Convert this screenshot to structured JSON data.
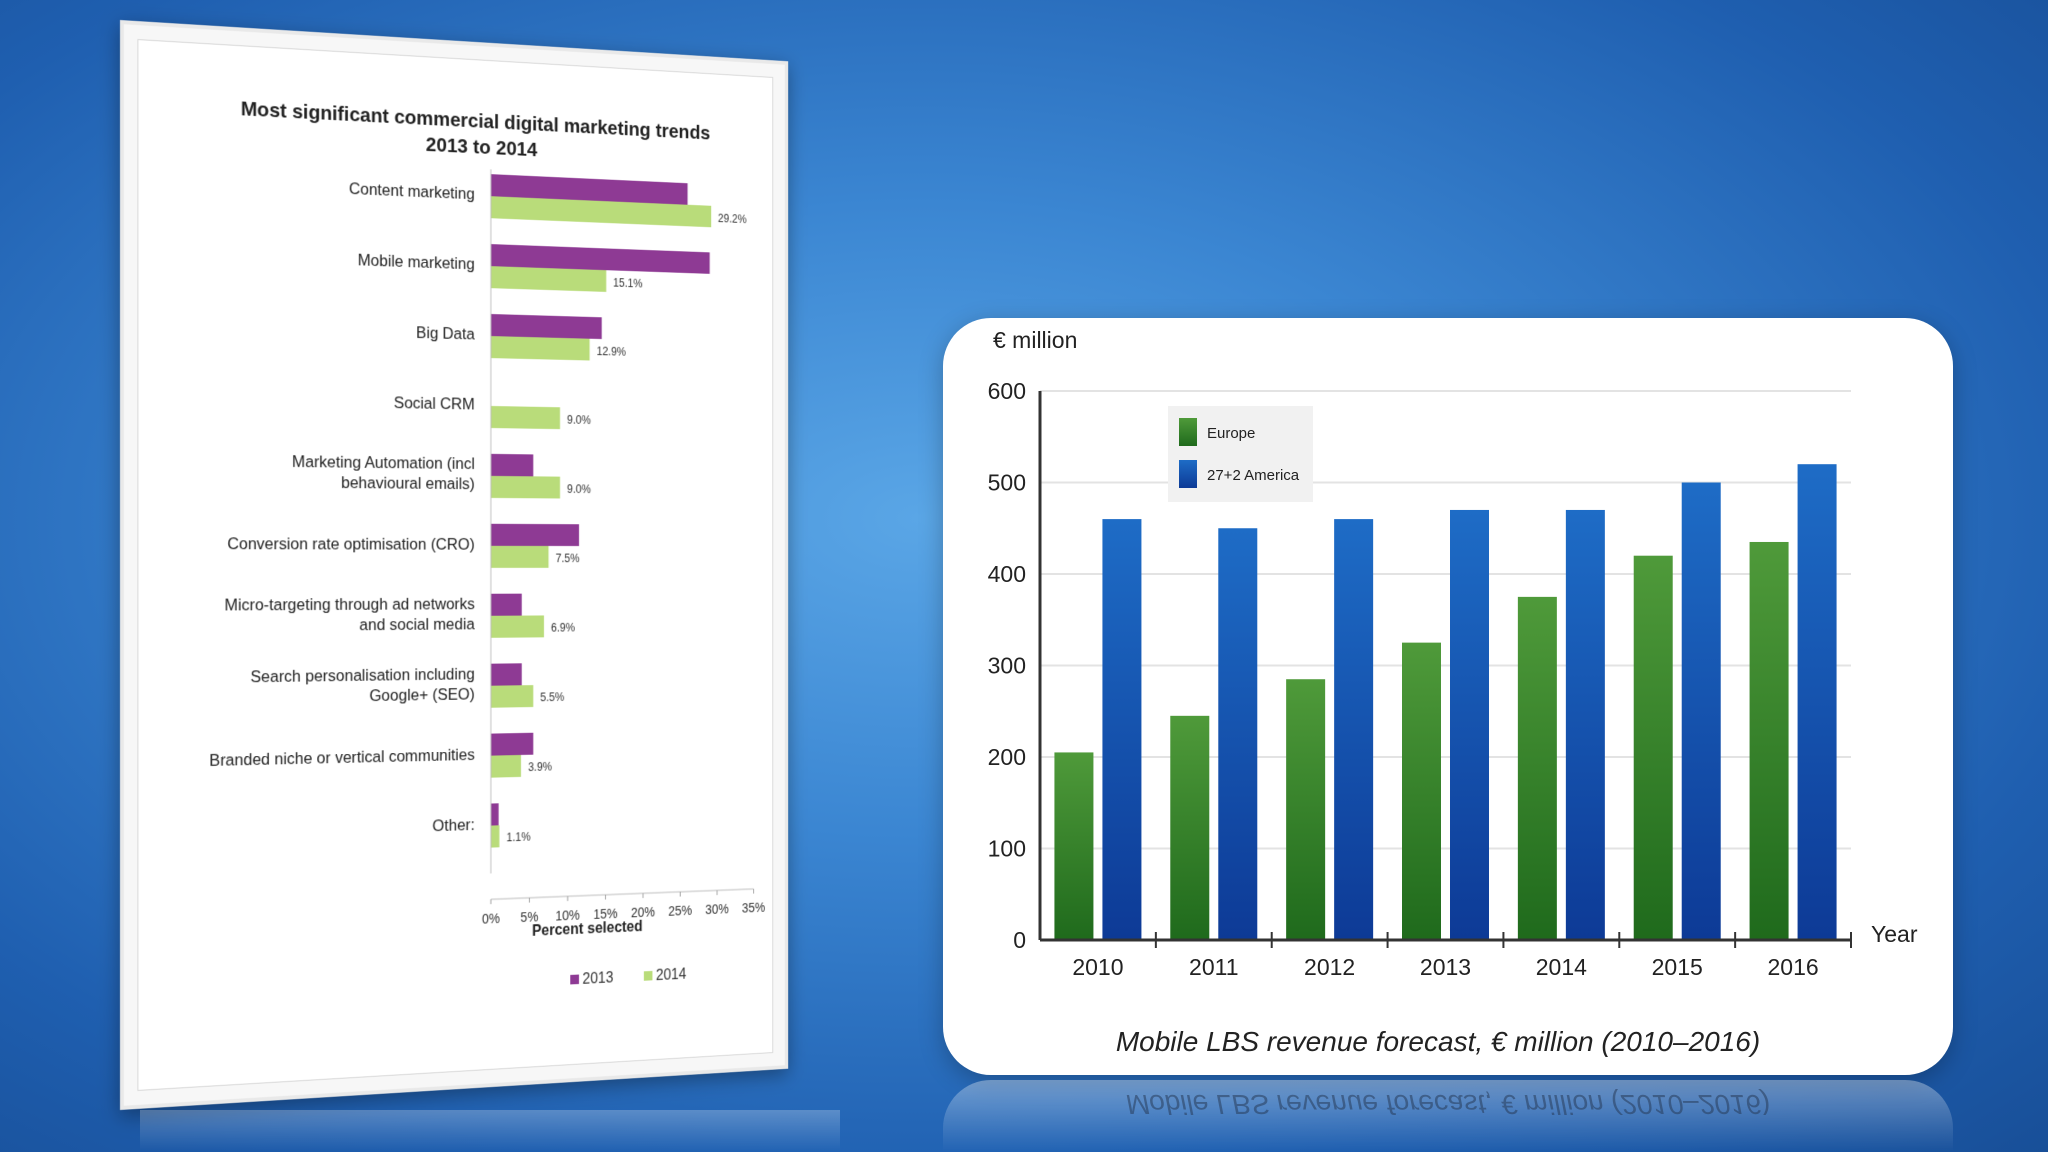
{
  "chart_data": [
    {
      "type": "bar",
      "orientation": "horizontal",
      "title": "Most significant commercial digital marketing trends",
      "subtitle": "2013 to 2014",
      "xlabel": "Percent selected",
      "xlim": [
        0,
        35
      ],
      "x_ticks": [
        "0%",
        "5%",
        "10%",
        "15%",
        "20%",
        "25%",
        "30%",
        "35%"
      ],
      "categories": [
        [
          "Content marketing"
        ],
        [
          "Mobile marketing"
        ],
        [
          "Big Data"
        ],
        [
          "Social CRM"
        ],
        [
          "Marketing Automation (incl",
          "behavioural emails)"
        ],
        [
          "Conversion rate optimisation (CRO)"
        ],
        [
          "Micro-targeting through ad networks",
          "and social media"
        ],
        [
          "Search personalisation including",
          "Google+ (SEO)"
        ],
        [
          "Branded niche or vertical communities"
        ],
        [
          "Other:"
        ]
      ],
      "series": [
        {
          "name": "2013",
          "color": "#8e3a94",
          "values": [
            26,
            29,
            14.5,
            0,
            5.5,
            11.5,
            4,
            4,
            5.5,
            1
          ]
        },
        {
          "name": "2014",
          "color": "#b9dc7a",
          "values": [
            29.2,
            15.1,
            12.9,
            9.0,
            9.0,
            7.5,
            6.9,
            5.5,
            3.9,
            1.1
          ]
        }
      ],
      "data_labels_2014": [
        "29.2%",
        "15.1%",
        "12.9%",
        "9.0%",
        "9.0%",
        "7.5%",
        "6.9%",
        "5.5%",
        "3.9%",
        "1.1%"
      ],
      "legend": [
        "2013",
        "2014"
      ],
      "legend_position": "bottom"
    },
    {
      "type": "bar",
      "title": "Mobile LBS revenue forecast, € million (2010–2016)",
      "ylabel": "€ million",
      "xlabel": "Year",
      "categories": [
        "2010",
        "2011",
        "2012",
        "2013",
        "2014",
        "2015",
        "2016"
      ],
      "ylim": [
        0,
        600
      ],
      "y_ticks": [
        "0",
        "100",
        "200",
        "300",
        "400",
        "500",
        "600"
      ],
      "series": [
        {
          "name": "Europe",
          "color": "#3a8a2a",
          "values": [
            205,
            245,
            285,
            325,
            375,
            420,
            435
          ]
        },
        {
          "name": "27+2 America",
          "color": "#1a5bb8",
          "values": [
            460,
            450,
            460,
            470,
            470,
            500,
            520
          ]
        }
      ],
      "legend_position": "top-left",
      "grid": true
    }
  ]
}
